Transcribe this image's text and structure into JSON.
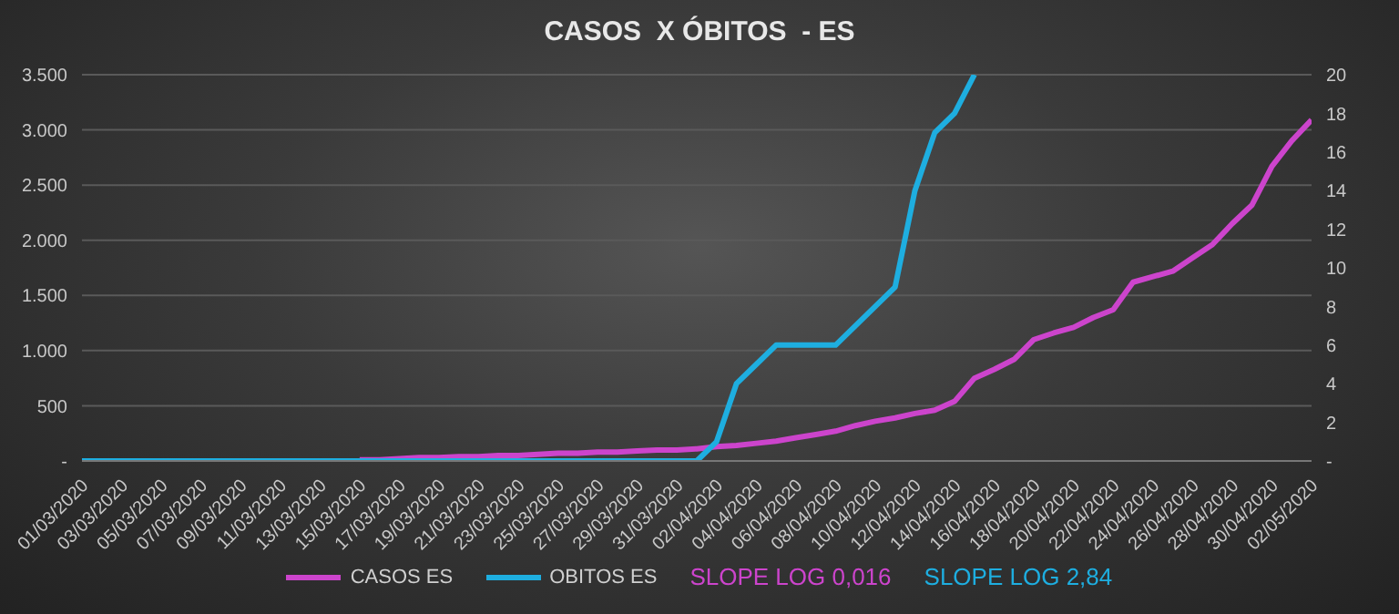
{
  "chart_data": {
    "type": "line",
    "title": "CASOS  X ÓBITOS  - ES",
    "categories": [
      "01/03/2020",
      null,
      "03/03/2020",
      null,
      "05/03/2020",
      null,
      "07/03/2020",
      null,
      "09/03/2020",
      null,
      "11/03/2020",
      null,
      "13/03/2020",
      null,
      "15/03/2020",
      null,
      "17/03/2020",
      null,
      "19/03/2020",
      null,
      "21/03/2020",
      null,
      "23/03/2020",
      null,
      "25/03/2020",
      null,
      "27/03/2020",
      null,
      "29/03/2020",
      null,
      "31/03/2020",
      null,
      "02/04/2020",
      null,
      "04/04/2020",
      null,
      "06/04/2020",
      null,
      "08/04/2020",
      null,
      "10/04/2020",
      null,
      "12/04/2020",
      null,
      "14/04/2020",
      null,
      "16/04/2020",
      null,
      "18/04/2020",
      null,
      "20/04/2020",
      null,
      "22/04/2020",
      null,
      "24/04/2020",
      null,
      "26/04/2020",
      null,
      "28/04/2020",
      null,
      "30/04/2020",
      null,
      "02/05/2020"
    ],
    "series": [
      {
        "name": "CASOS ES",
        "color": "#cc44cc",
        "values": [
          null,
          null,
          null,
          null,
          null,
          null,
          null,
          null,
          null,
          null,
          null,
          null,
          null,
          null,
          10,
          10,
          20,
          30,
          30,
          40,
          40,
          50,
          50,
          60,
          70,
          70,
          80,
          80,
          90,
          100,
          100,
          110,
          130,
          140,
          160,
          180,
          210,
          240,
          270,
          320,
          360,
          390,
          430,
          460,
          540,
          750,
          830,
          920,
          1100,
          1160,
          1210,
          1300,
          1370,
          1620,
          1670,
          1720,
          1840,
          1960,
          2150,
          2320,
          2670,
          2900,
          3090
        ]
      },
      {
        "name": "OBITOS ES",
        "color": "#1eaee0",
        "axis": "y2",
        "values": [
          0,
          0,
          0,
          0,
          0,
          0,
          0,
          0,
          0,
          0,
          0,
          0,
          0,
          0,
          0,
          0,
          0,
          0,
          0,
          0,
          0,
          0,
          0,
          0,
          0,
          0,
          0,
          0,
          0,
          0,
          0,
          0,
          1,
          4,
          5,
          6,
          6,
          6,
          6,
          7,
          8,
          9,
          14,
          17,
          18,
          20,
          null,
          null,
          null,
          null,
          null,
          null,
          null,
          null,
          null,
          null,
          null,
          null,
          null,
          null,
          null,
          null,
          null
        ]
      }
    ],
    "ylim": [
      0,
      3500
    ],
    "yticks": [
      {
        "value": 0,
        "label": "-"
      },
      {
        "value": 500,
        "label": "500"
      },
      {
        "value": 1000,
        "label": "1.000"
      },
      {
        "value": 1500,
        "label": "1.500"
      },
      {
        "value": 2000,
        "label": "2.000"
      },
      {
        "value": 2500,
        "label": "2.500"
      },
      {
        "value": 3000,
        "label": "3.000"
      },
      {
        "value": 3500,
        "label": "3.500"
      }
    ],
    "y2lim": [
      0,
      20
    ],
    "y2ticks": [
      {
        "value": 0,
        "label": "-"
      },
      2,
      4,
      6,
      8,
      10,
      12,
      14,
      16,
      18,
      20
    ],
    "grid": "y",
    "legend": "bottom",
    "marker": "none",
    "line_style": "solid",
    "annotations": [
      "SLOPE LOG 0,016",
      "SLOPE LOG 2,84"
    ]
  }
}
